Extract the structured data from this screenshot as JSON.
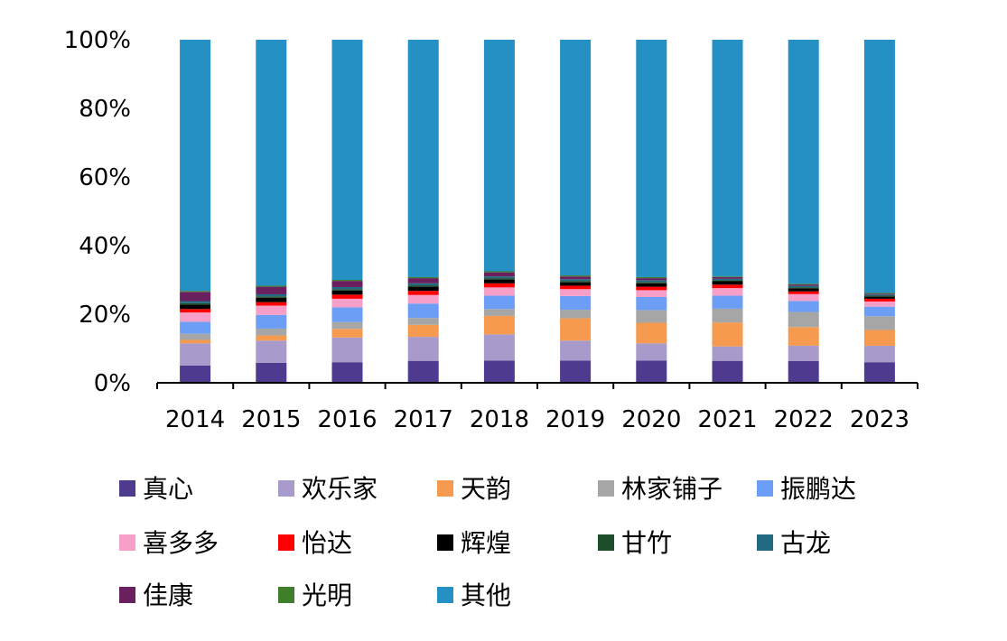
{
  "chart_data": {
    "type": "bar",
    "stacked": true,
    "normalized": true,
    "categories": [
      "2014",
      "2015",
      "2016",
      "2017",
      "2018",
      "2019",
      "2020",
      "2021",
      "2022",
      "2023"
    ],
    "ylim": [
      0,
      100
    ],
    "yticks": [
      "0%",
      "20%",
      "40%",
      "60%",
      "80%",
      "100%"
    ],
    "ytick_values": [
      0,
      20,
      40,
      60,
      80,
      100
    ],
    "grid": false,
    "legend_position": "bottom",
    "series": [
      {
        "name": "真心",
        "color": "#4e3a8e",
        "values": [
          5.0,
          5.8,
          6.0,
          6.4,
          6.5,
          6.5,
          6.5,
          6.4,
          6.3,
          6.0
        ]
      },
      {
        "name": "欢乐家",
        "color": "#a89bcc",
        "values": [
          6.5,
          6.5,
          7.2,
          7.0,
          7.6,
          5.8,
          5.0,
          4.2,
          4.5,
          4.8
        ]
      },
      {
        "name": "天韵",
        "color": "#f59a4e",
        "values": [
          1.0,
          1.5,
          2.5,
          3.5,
          5.4,
          6.5,
          6.0,
          7.0,
          5.4,
          4.6
        ]
      },
      {
        "name": "林家铺子",
        "color": "#a6a6a6",
        "values": [
          1.8,
          2.0,
          2.0,
          2.0,
          2.0,
          2.5,
          3.7,
          4.0,
          4.4,
          4.0
        ]
      },
      {
        "name": "振鹏达",
        "color": "#6d9ef5",
        "values": [
          3.5,
          4.0,
          4.3,
          4.2,
          3.9,
          4.0,
          3.8,
          3.8,
          3.2,
          2.8
        ]
      },
      {
        "name": "喜多多",
        "color": "#f79fc9",
        "values": [
          2.7,
          2.7,
          2.5,
          2.5,
          2.4,
          2.0,
          2.0,
          2.2,
          2.0,
          1.5
        ]
      },
      {
        "name": "怡达",
        "color": "#ff0000",
        "values": [
          1.0,
          1.0,
          1.2,
          1.2,
          1.2,
          1.0,
          1.0,
          1.0,
          0.8,
          0.8
        ]
      },
      {
        "name": "辉煌",
        "color": "#000000",
        "values": [
          1.3,
          1.3,
          1.2,
          1.2,
          1.1,
          1.0,
          1.0,
          1.0,
          0.9,
          0.6
        ]
      },
      {
        "name": "甘竹",
        "color": "#1e4d2b",
        "values": [
          0.4,
          0.4,
          0.4,
          0.4,
          0.4,
          0.4,
          0.4,
          0.3,
          0.3,
          0.3
        ]
      },
      {
        "name": "古龙",
        "color": "#216a82",
        "values": [
          0.6,
          0.6,
          0.6,
          0.6,
          0.5,
          0.5,
          0.5,
          0.4,
          0.4,
          0.3
        ]
      },
      {
        "name": "佳康",
        "color": "#6a1f5e",
        "values": [
          2.7,
          2.2,
          1.8,
          1.5,
          1.2,
          0.8,
          0.6,
          0.5,
          0.4,
          0.3
        ]
      },
      {
        "name": "光明",
        "color": "#3f7f2c",
        "values": [
          0.3,
          0.3,
          0.3,
          0.3,
          0.3,
          0.3,
          0.3,
          0.2,
          0.2,
          0.2
        ]
      },
      {
        "name": "其他",
        "color": "#2490c4",
        "values": [
          73.2,
          71.7,
          70.0,
          69.2,
          67.5,
          68.7,
          69.2,
          69.0,
          71.0,
          73.8
        ]
      }
    ]
  }
}
